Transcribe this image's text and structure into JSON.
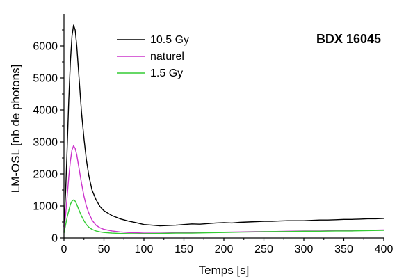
{
  "chart_data": {
    "type": "line",
    "title": "",
    "annotation": "BDX 16045",
    "xlabel": "Temps [s]",
    "ylabel": "LM-OSL [nb de photons]",
    "xlim": [
      0,
      400
    ],
    "ylim": [
      0,
      7000
    ],
    "xticks": [
      "0",
      "50",
      "100",
      "150",
      "200",
      "250",
      "300",
      "350",
      "400"
    ],
    "yticks": [
      "0",
      "1000",
      "2000",
      "3000",
      "4000",
      "5000",
      "6000"
    ],
    "grid": false,
    "legend_position": "top-left",
    "series": [
      {
        "name": "10.5 Gy",
        "color": "#000000",
        "points": [
          [
            0,
            350
          ],
          [
            2,
            1400
          ],
          [
            4,
            2800
          ],
          [
            6,
            4300
          ],
          [
            8,
            5500
          ],
          [
            10,
            6300
          ],
          [
            12,
            6650
          ],
          [
            14,
            6500
          ],
          [
            16,
            6000
          ],
          [
            18,
            5300
          ],
          [
            20,
            4600
          ],
          [
            22,
            3900
          ],
          [
            25,
            3100
          ],
          [
            28,
            2450
          ],
          [
            31,
            1950
          ],
          [
            35,
            1500
          ],
          [
            40,
            1200
          ],
          [
            45,
            980
          ],
          [
            50,
            850
          ],
          [
            60,
            700
          ],
          [
            70,
            600
          ],
          [
            80,
            530
          ],
          [
            90,
            480
          ],
          [
            100,
            420
          ],
          [
            110,
            400
          ],
          [
            120,
            380
          ],
          [
            130,
            390
          ],
          [
            140,
            400
          ],
          [
            150,
            420
          ],
          [
            160,
            440
          ],
          [
            170,
            430
          ],
          [
            180,
            450
          ],
          [
            190,
            470
          ],
          [
            200,
            480
          ],
          [
            210,
            470
          ],
          [
            220,
            490
          ],
          [
            230,
            500
          ],
          [
            240,
            510
          ],
          [
            250,
            520
          ],
          [
            260,
            520
          ],
          [
            270,
            530
          ],
          [
            280,
            540
          ],
          [
            290,
            540
          ],
          [
            300,
            540
          ],
          [
            310,
            550
          ],
          [
            320,
            560
          ],
          [
            330,
            560
          ],
          [
            340,
            570
          ],
          [
            350,
            580
          ],
          [
            360,
            580
          ],
          [
            370,
            590
          ],
          [
            380,
            600
          ],
          [
            390,
            600
          ],
          [
            400,
            610
          ]
        ]
      },
      {
        "name": "naturel",
        "color": "#cc33cc",
        "points": [
          [
            0,
            200
          ],
          [
            2,
            700
          ],
          [
            4,
            1300
          ],
          [
            6,
            1900
          ],
          [
            8,
            2400
          ],
          [
            10,
            2750
          ],
          [
            12,
            2880
          ],
          [
            14,
            2800
          ],
          [
            16,
            2600
          ],
          [
            18,
            2300
          ],
          [
            20,
            2000
          ],
          [
            22,
            1700
          ],
          [
            25,
            1300
          ],
          [
            28,
            1000
          ],
          [
            31,
            780
          ],
          [
            35,
            560
          ],
          [
            40,
            400
          ],
          [
            45,
            320
          ],
          [
            50,
            270
          ],
          [
            60,
            220
          ],
          [
            70,
            190
          ],
          [
            80,
            170
          ],
          [
            90,
            160
          ],
          [
            100,
            150
          ],
          [
            120,
            150
          ],
          [
            140,
            160
          ],
          [
            160,
            170
          ],
          [
            180,
            170
          ],
          [
            200,
            180
          ],
          [
            220,
            190
          ],
          [
            240,
            200
          ],
          [
            260,
            200
          ],
          [
            280,
            210
          ],
          [
            300,
            220
          ],
          [
            320,
            220
          ],
          [
            340,
            230
          ],
          [
            360,
            230
          ],
          [
            380,
            240
          ],
          [
            400,
            250
          ]
        ]
      },
      {
        "name": "1.5 Gy",
        "color": "#33cc33",
        "points": [
          [
            0,
            150
          ],
          [
            2,
            400
          ],
          [
            4,
            650
          ],
          [
            6,
            850
          ],
          [
            8,
            1050
          ],
          [
            10,
            1150
          ],
          [
            12,
            1190
          ],
          [
            14,
            1150
          ],
          [
            16,
            1050
          ],
          [
            18,
            920
          ],
          [
            20,
            800
          ],
          [
            22,
            680
          ],
          [
            25,
            540
          ],
          [
            28,
            420
          ],
          [
            31,
            340
          ],
          [
            35,
            270
          ],
          [
            40,
            220
          ],
          [
            45,
            190
          ],
          [
            50,
            170
          ],
          [
            60,
            150
          ],
          [
            70,
            140
          ],
          [
            80,
            135
          ],
          [
            90,
            130
          ],
          [
            100,
            130
          ],
          [
            120,
            140
          ],
          [
            140,
            150
          ],
          [
            160,
            150
          ],
          [
            180,
            160
          ],
          [
            200,
            170
          ],
          [
            220,
            180
          ],
          [
            240,
            190
          ],
          [
            260,
            200
          ],
          [
            280,
            200
          ],
          [
            300,
            210
          ],
          [
            320,
            210
          ],
          [
            340,
            220
          ],
          [
            360,
            220
          ],
          [
            380,
            230
          ],
          [
            400,
            240
          ]
        ]
      }
    ]
  }
}
